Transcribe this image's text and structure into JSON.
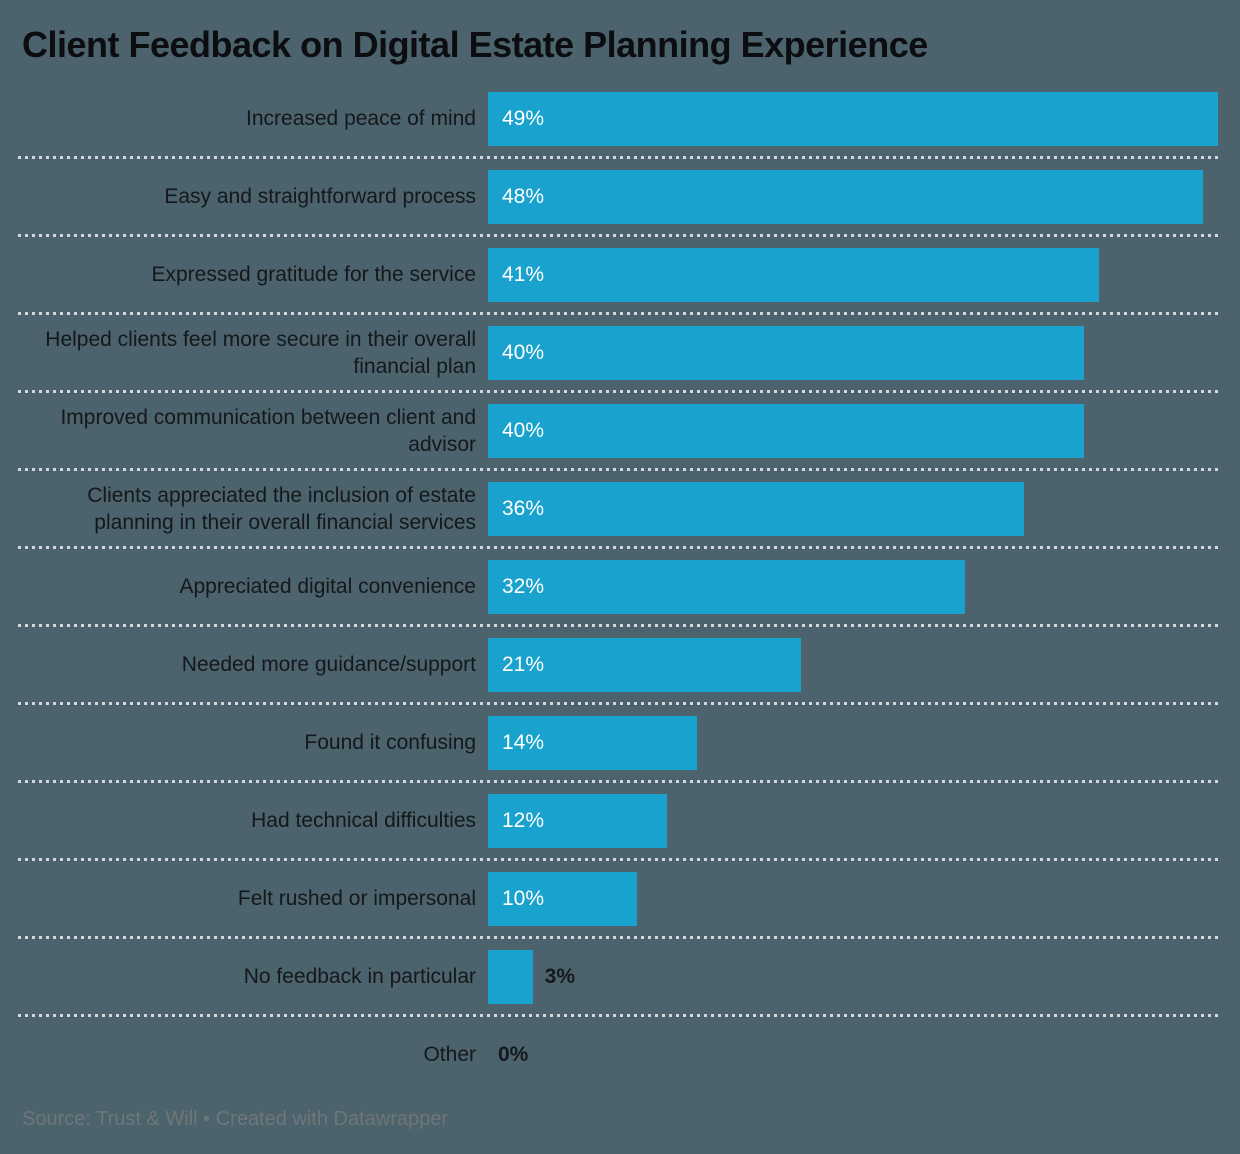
{
  "title": "Client Feedback on Digital Estate Planning Experience",
  "footer": {
    "text": "Source: Trust & Will • Created with Datawrapper"
  },
  "colors": {
    "background": "#4c626c",
    "bar": "#1aa2ce",
    "title": "#0b0d11",
    "label": "#14181b",
    "value_inside": "#ffffff",
    "value_outside": "#14181b",
    "separator": "#d3d8db",
    "footer_text": "#6f7678"
  },
  "chart_data": {
    "type": "bar",
    "orientation": "horizontal",
    "title": "Client Feedback on Digital Estate Planning Experience",
    "xlabel": "",
    "ylabel": "",
    "unit": "%",
    "xlim": [
      0,
      49
    ],
    "grid": false,
    "legend": false,
    "categories": [
      "Increased peace of mind",
      "Easy and straightforward process",
      "Expressed gratitude for the service",
      "Helped clients feel more secure in their overall financial plan",
      "Improved communication between client and advisor",
      "Clients appreciated the inclusion of estate planning in their overall financial services",
      "Appreciated digital convenience",
      "Needed more guidance/support",
      "Found it confusing",
      "Had technical difficulties",
      "Felt rushed or impersonal",
      "No feedback in particular",
      "Other"
    ],
    "values": [
      49,
      48,
      41,
      40,
      40,
      36,
      32,
      21,
      14,
      12,
      10,
      3,
      0
    ],
    "value_labels": [
      "49%",
      "48%",
      "41%",
      "40%",
      "40%",
      "36%",
      "32%",
      "21%",
      "14%",
      "12%",
      "10%",
      "3%",
      "0%"
    ],
    "source": "Trust & Will",
    "created_with": "Datawrapper"
  }
}
